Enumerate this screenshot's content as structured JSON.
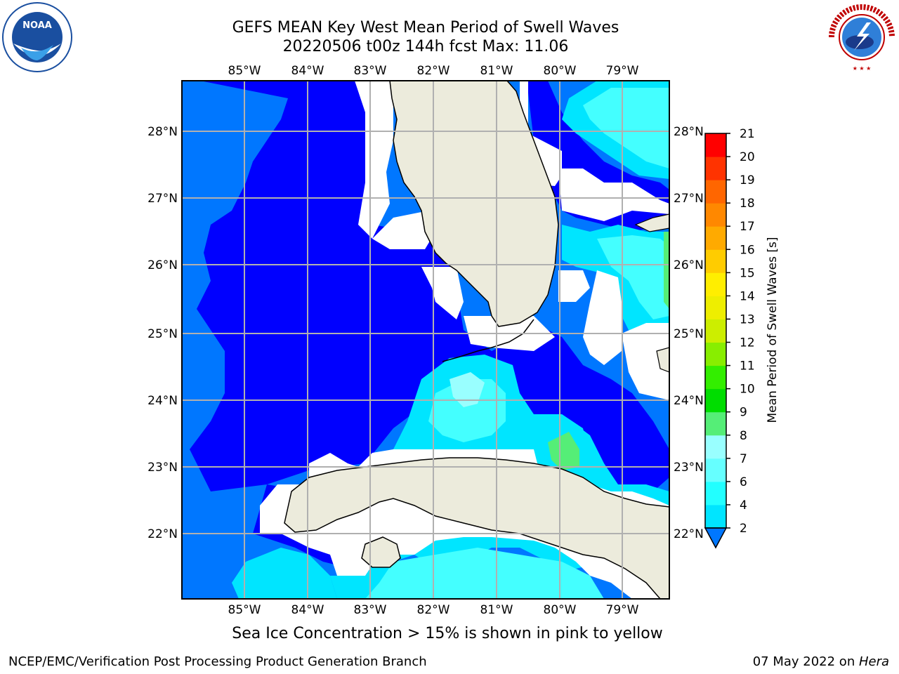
{
  "header": {
    "title_line1": "GEFS MEAN Key West Mean Period of Swell Waves",
    "title_line2": "20220506 t00z 144h fcst   Max: 11.06"
  },
  "logos": {
    "left": "NOAA",
    "left_ring_text": "NATIONAL OCEANIC AND ATMOSPHERIC ADMINISTRATION · U.S. DEPARTMENT OF COMMERCE",
    "right_ring_text": "NATIONAL WEATHER SERVICE"
  },
  "map": {
    "lon_labels": [
      "85°W",
      "84°W",
      "83°W",
      "82°W",
      "81°W",
      "80°W",
      "79°W"
    ],
    "lat_labels": [
      "28°N",
      "27°N",
      "26°N",
      "25°N",
      "24°N",
      "23°N",
      "22°N"
    ],
    "colors": {
      "land": "#ecebdc",
      "deep_blue": "#0000ff",
      "mid_blue": "#0077ff",
      "light_blue": "#00b0ff",
      "cyan": "#00ffff",
      "aqua": "#44ffff",
      "pale_aqua": "#99ffff",
      "green": "#55ee77",
      "grid": "#b0b0b0"
    }
  },
  "colorbar": {
    "label": "Mean Period of Swell Waves [s]",
    "ticks": [
      "2",
      "4",
      "6",
      "7",
      "8",
      "9",
      "10",
      "11",
      "12",
      "13",
      "14",
      "15",
      "16",
      "17",
      "18",
      "19",
      "20",
      "21"
    ],
    "colors": [
      "#0077ff",
      "#00e5ff",
      "#22ffff",
      "#66ffff",
      "#99ffff",
      "#55ee77",
      "#00dd00",
      "#33ee00",
      "#88ee00",
      "#ccee00",
      "#eeee00",
      "#ffee00",
      "#ffcc00",
      "#ffaa00",
      "#ff8800",
      "#ff6600",
      "#ff3300",
      "#ff0000"
    ]
  },
  "note": "Sea Ice Concentration > 15% is shown in pink to yellow",
  "footer": {
    "left": "NCEP/EMC/Verification Post Processing Product Generation Branch",
    "right_date": "07 May 2022 on ",
    "right_machine": "Hera"
  }
}
